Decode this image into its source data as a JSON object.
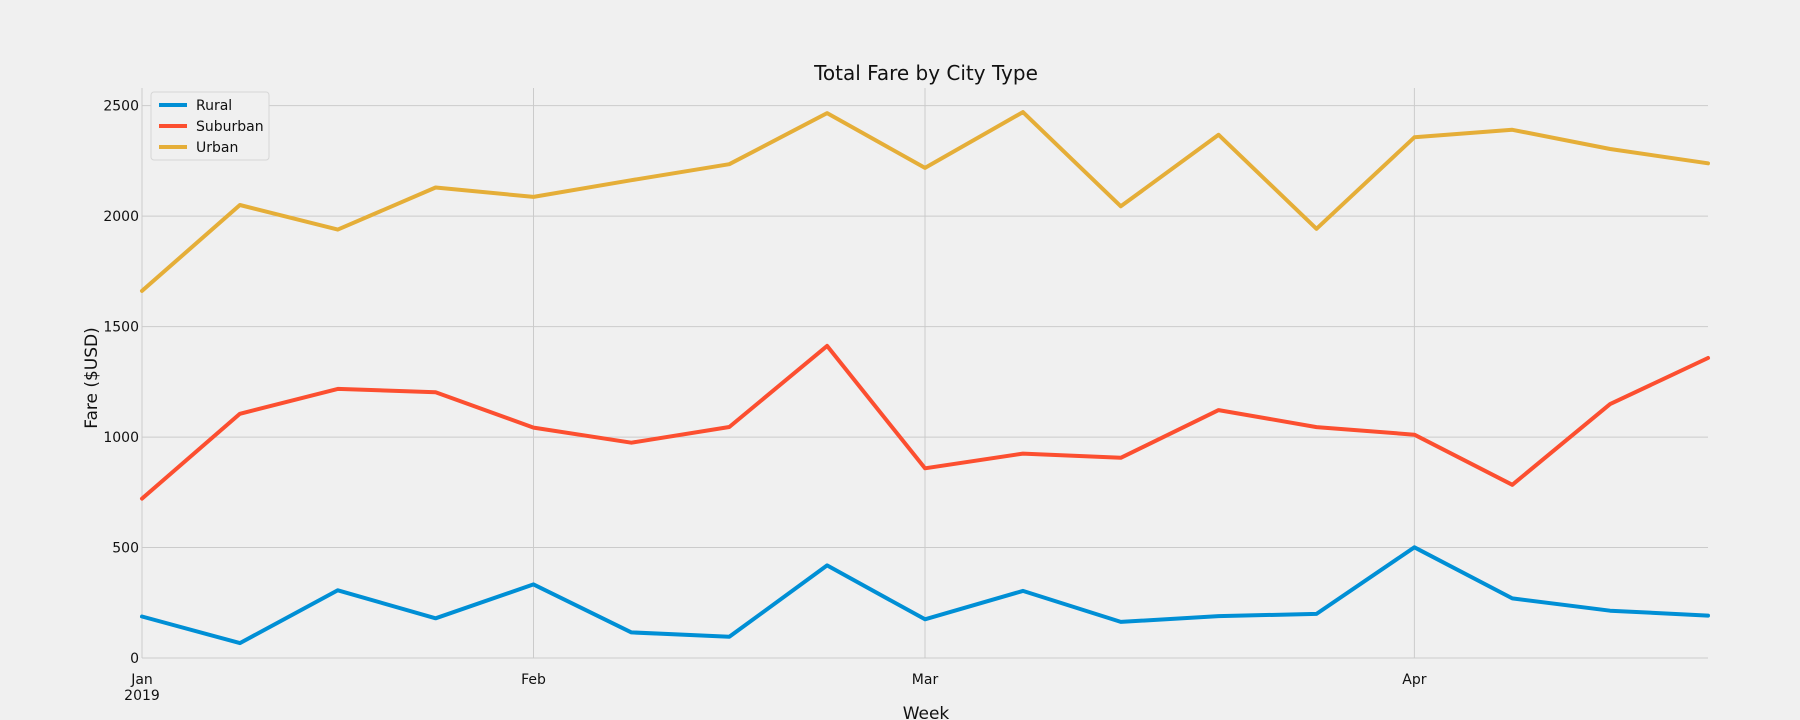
{
  "chart_data": {
    "type": "line",
    "title": "Total Fare by City Type",
    "xlabel": "Week",
    "ylabel": "Fare ($USD)",
    "ylim": [
      0,
      2580
    ],
    "yticks": [
      0,
      500,
      1000,
      1500,
      2000,
      2500
    ],
    "ytick_labels": [
      "0",
      "500",
      "1000",
      "1500",
      "2000",
      "2500"
    ],
    "x": [
      "2019-01-06",
      "2019-01-13",
      "2019-01-20",
      "2019-01-27",
      "2019-02-03",
      "2019-02-10",
      "2019-02-17",
      "2019-02-24",
      "2019-03-03",
      "2019-03-10",
      "2019-03-17",
      "2019-03-24",
      "2019-03-31",
      "2019-04-07",
      "2019-04-14",
      "2019-04-21",
      "2019-04-28"
    ],
    "xlim_index": [
      0,
      16
    ],
    "xticks": [
      {
        "label": "Jan",
        "sublabel": "2019",
        "position": 0
      },
      {
        "label": "Feb",
        "sublabel": "",
        "position": 4
      },
      {
        "label": "Mar",
        "sublabel": "",
        "position": 8
      },
      {
        "label": "Apr",
        "sublabel": "",
        "position": 13
      }
    ],
    "grid": true,
    "legend_position": "top-left",
    "series": [
      {
        "name": "Rural",
        "color": "#008fd5",
        "values": [
          187.92,
          67.65,
          306.54,
          179.5,
          333.08,
          115.8,
          95.82,
          419.06,
          175.14,
          303.94,
          163.39,
          189.76,
          199.42,
          501.24,
          269.79,
          214.14,
          191.85
        ]
      },
      {
        "name": "Suburban",
        "color": "#fc4f30",
        "values": [
          721.6,
          1105.13,
          1218.2,
          1203.28,
          1042.79,
          974.34,
          1045.5,
          1412.74,
          858.46,
          925.27,
          906.2,
          1122.2,
          1045.06,
          1010.73,
          784.04,
          1149.27,
          1357.75
        ]
      },
      {
        "name": "Urban",
        "color": "#e5ae38",
        "values": [
          1661.68,
          2050.43,
          1939.02,
          2129.51,
          2086.94,
          2162.64,
          2235.07,
          2466.29,
          2218.2,
          2470.93,
          2044.42,
          2368.37,
          1942.77,
          2356.7,
          2390.72,
          2303.8,
          2239.36
        ]
      }
    ]
  }
}
